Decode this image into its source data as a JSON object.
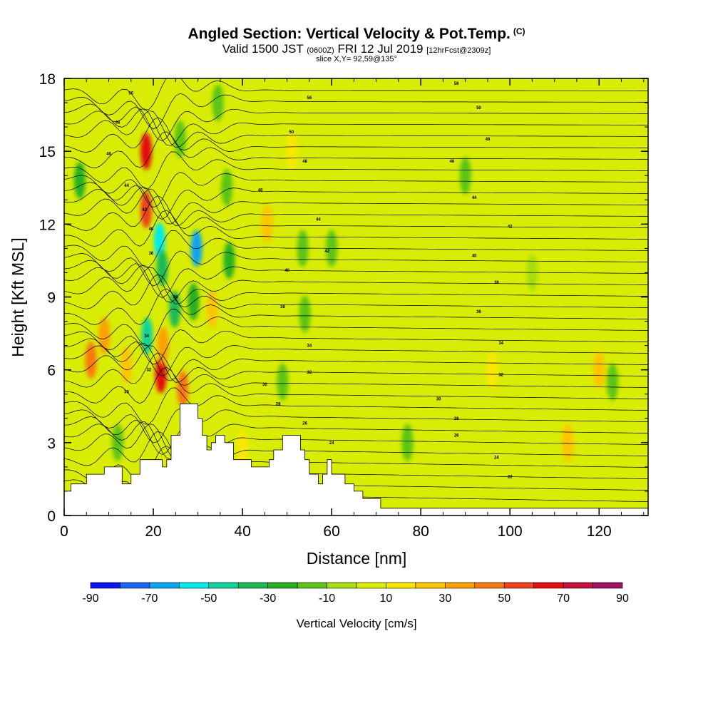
{
  "header": {
    "title": "Angled Section: Vertical Velocity & Pot.Temp.",
    "title_unit": "(C)",
    "subtitle_main": "Valid 1500 JST",
    "subtitle_utc": "(0600Z)",
    "subtitle_date": "FRI 12 Jul 2019",
    "subtitle_fcst": "[12hrFcst@2309z]",
    "slice": "slice X,Y= 92,59@135°"
  },
  "chart_data": {
    "type": "heatmap",
    "title": "Angled Section: Vertical Velocity & Pot.Temp.",
    "xlabel": "Distance [nm]",
    "ylabel": "Height [Kft MSL]",
    "xlim": [
      0,
      131
    ],
    "ylim": [
      0,
      18
    ],
    "x_ticks": [
      "0",
      "20",
      "40",
      "60",
      "80",
      "100",
      "120"
    ],
    "y_ticks": [
      "0",
      "3",
      "6",
      "9",
      "12",
      "15",
      "18"
    ],
    "colorbar": {
      "title": "Vertical Velocity [cm/s]",
      "tick_labels": [
        "-90",
        "-70",
        "-50",
        "-30",
        "-10",
        "10",
        "30",
        "50",
        "70",
        "90"
      ],
      "bounds": [
        -90,
        -80,
        -70,
        -60,
        -50,
        -40,
        -30,
        -20,
        -10,
        0,
        10,
        20,
        30,
        40,
        50,
        60,
        70,
        80,
        90
      ],
      "colors": [
        "#0a14f0",
        "#1a64f2",
        "#0aa6f2",
        "#00ecec",
        "#10d49c",
        "#1cba54",
        "#28b020",
        "#5cc414",
        "#a6de10",
        "#d8ec04",
        "#fae700",
        "#fec400",
        "#fca000",
        "#f87810",
        "#f0401c",
        "#e41010",
        "#c8103c",
        "#a01064"
      ]
    },
    "velocity_cells": [
      {
        "x": 6,
        "y": 6.4,
        "v": 45
      },
      {
        "x": 9,
        "y": 7.4,
        "v": 30
      },
      {
        "x": 14,
        "y": 6.2,
        "v": 22
      },
      {
        "x": 18.4,
        "y": 15.0,
        "v": 65
      },
      {
        "x": 18.4,
        "y": 12.6,
        "v": 55
      },
      {
        "x": 21.4,
        "y": 11.3,
        "v": -55
      },
      {
        "x": 22.0,
        "y": 10.2,
        "v": -35
      },
      {
        "x": 18.6,
        "y": 7.4,
        "v": -45
      },
      {
        "x": 21.7,
        "y": 5.8,
        "v": 62
      },
      {
        "x": 22.2,
        "y": 7.0,
        "v": 35
      },
      {
        "x": 24.8,
        "y": 8.5,
        "v": -35
      },
      {
        "x": 29.7,
        "y": 11.0,
        "v": -62
      },
      {
        "x": 29.0,
        "y": 8.8,
        "v": -28
      },
      {
        "x": 26.6,
        "y": 5.2,
        "v": 40
      },
      {
        "x": 33.2,
        "y": 8.5,
        "v": 25
      },
      {
        "x": 37.0,
        "y": 10.5,
        "v": -22
      },
      {
        "x": 36.5,
        "y": 13.5,
        "v": -20
      },
      {
        "x": 3.5,
        "y": 13.8,
        "v": -22
      },
      {
        "x": 26.0,
        "y": 15.5,
        "v": -18
      },
      {
        "x": 34.5,
        "y": 17.0,
        "v": -15
      },
      {
        "x": 45.5,
        "y": 12.0,
        "v": 22
      },
      {
        "x": 51.0,
        "y": 15.0,
        "v": 18
      },
      {
        "x": 53.5,
        "y": 11.0,
        "v": -20
      },
      {
        "x": 54.0,
        "y": 8.3,
        "v": -18
      },
      {
        "x": 49.0,
        "y": 5.5,
        "v": -15
      },
      {
        "x": 60.0,
        "y": 11.0,
        "v": -12
      },
      {
        "x": 113.0,
        "y": 3.0,
        "v": 28
      },
      {
        "x": 120.0,
        "y": 6.0,
        "v": 22
      },
      {
        "x": 123.0,
        "y": 5.5,
        "v": -15
      },
      {
        "x": 90.0,
        "y": 14.0,
        "v": -12
      },
      {
        "x": 105.0,
        "y": 10.0,
        "v": -10
      },
      {
        "x": 96.0,
        "y": 6.0,
        "v": 12
      },
      {
        "x": 77.0,
        "y": 3.0,
        "v": -14
      },
      {
        "x": 40.0,
        "y": 2.8,
        "v": 18
      },
      {
        "x": 12.0,
        "y": 3.0,
        "v": -18
      }
    ],
    "terrain_profile": [
      [
        0,
        1.0
      ],
      [
        1.5,
        1.0
      ],
      [
        1.5,
        1.3
      ],
      [
        5,
        1.3
      ],
      [
        5,
        1.7
      ],
      [
        9,
        1.7
      ],
      [
        9,
        2.0
      ],
      [
        13,
        2.0
      ],
      [
        13,
        1.3
      ],
      [
        15,
        1.3
      ],
      [
        15,
        1.7
      ],
      [
        17,
        1.7
      ],
      [
        17,
        2.3
      ],
      [
        22,
        2.3
      ],
      [
        22,
        2.0
      ],
      [
        23,
        2.0
      ],
      [
        23,
        2.3
      ],
      [
        24,
        2.3
      ],
      [
        24,
        3.3
      ],
      [
        26,
        3.3
      ],
      [
        26,
        4.6
      ],
      [
        30,
        4.6
      ],
      [
        30,
        4.0
      ],
      [
        31,
        4.0
      ],
      [
        31,
        3.3
      ],
      [
        32,
        3.3
      ],
      [
        32,
        2.7
      ],
      [
        33,
        2.7
      ],
      [
        33,
        3.0
      ],
      [
        34,
        3.0
      ],
      [
        34,
        3.3
      ],
      [
        36,
        3.3
      ],
      [
        36,
        3.0
      ],
      [
        38,
        3.0
      ],
      [
        38,
        2.3
      ],
      [
        42,
        2.3
      ],
      [
        42,
        2.0
      ],
      [
        46,
        2.0
      ],
      [
        46,
        2.3
      ],
      [
        47,
        2.3
      ],
      [
        47,
        2.7
      ],
      [
        49,
        2.7
      ],
      [
        49,
        3.3
      ],
      [
        53,
        3.3
      ],
      [
        53,
        2.7
      ],
      [
        54,
        2.7
      ],
      [
        54,
        2.3
      ],
      [
        55,
        2.3
      ],
      [
        55,
        1.7
      ],
      [
        57,
        1.7
      ],
      [
        57,
        1.3
      ],
      [
        58,
        1.3
      ],
      [
        58,
        1.7
      ],
      [
        59,
        1.7
      ],
      [
        59,
        2.3
      ],
      [
        60,
        2.3
      ],
      [
        60,
        1.7
      ],
      [
        63,
        1.7
      ],
      [
        63,
        1.3
      ],
      [
        65,
        1.3
      ],
      [
        65,
        1.0
      ],
      [
        67,
        1.0
      ],
      [
        67,
        0.7
      ],
      [
        71,
        0.7
      ],
      [
        71,
        0.3
      ],
      [
        131,
        0.3
      ]
    ],
    "isotherm_labels": [
      {
        "x": 15,
        "y": 17.4,
        "text": "50"
      },
      {
        "x": 12,
        "y": 16.2,
        "text": "48"
      },
      {
        "x": 10,
        "y": 14.9,
        "text": "46"
      },
      {
        "x": 14,
        "y": 13.6,
        "text": "44"
      },
      {
        "x": 18,
        "y": 12.6,
        "text": "42"
      },
      {
        "x": 19.5,
        "y": 11.8,
        "text": "40"
      },
      {
        "x": 19.5,
        "y": 10.8,
        "text": "38"
      },
      {
        "x": 25,
        "y": 9.0,
        "text": "36"
      },
      {
        "x": 18.5,
        "y": 7.4,
        "text": "34"
      },
      {
        "x": 19,
        "y": 6.0,
        "text": "32"
      },
      {
        "x": 14,
        "y": 5.1,
        "text": "30"
      },
      {
        "x": 55,
        "y": 17.2,
        "text": "56"
      },
      {
        "x": 51,
        "y": 15.8,
        "text": "50"
      },
      {
        "x": 54,
        "y": 14.6,
        "text": "48"
      },
      {
        "x": 44,
        "y": 13.4,
        "text": "46"
      },
      {
        "x": 57,
        "y": 12.2,
        "text": "44"
      },
      {
        "x": 59,
        "y": 10.9,
        "text": "42"
      },
      {
        "x": 50,
        "y": 10.1,
        "text": "40"
      },
      {
        "x": 49,
        "y": 8.6,
        "text": "38"
      },
      {
        "x": 55,
        "y": 7.0,
        "text": "34"
      },
      {
        "x": 55,
        "y": 5.9,
        "text": "32"
      },
      {
        "x": 45,
        "y": 5.4,
        "text": "30"
      },
      {
        "x": 48,
        "y": 4.6,
        "text": "28"
      },
      {
        "x": 54,
        "y": 3.8,
        "text": "26"
      },
      {
        "x": 60,
        "y": 3.0,
        "text": "24"
      },
      {
        "x": 88,
        "y": 17.8,
        "text": "56"
      },
      {
        "x": 93,
        "y": 16.8,
        "text": "50"
      },
      {
        "x": 95,
        "y": 15.5,
        "text": "48"
      },
      {
        "x": 87,
        "y": 14.6,
        "text": "46"
      },
      {
        "x": 92,
        "y": 13.1,
        "text": "44"
      },
      {
        "x": 100,
        "y": 11.9,
        "text": "42"
      },
      {
        "x": 92,
        "y": 10.7,
        "text": "40"
      },
      {
        "x": 97,
        "y": 9.6,
        "text": "38"
      },
      {
        "x": 93,
        "y": 8.4,
        "text": "36"
      },
      {
        "x": 98,
        "y": 7.1,
        "text": "34"
      },
      {
        "x": 98,
        "y": 5.8,
        "text": "32"
      },
      {
        "x": 84,
        "y": 4.8,
        "text": "30"
      },
      {
        "x": 88,
        "y": 4.0,
        "text": "28"
      },
      {
        "x": 88,
        "y": 3.3,
        "text": "26"
      },
      {
        "x": 97,
        "y": 2.4,
        "text": "24"
      },
      {
        "x": 100,
        "y": 1.6,
        "text": "22"
      }
    ]
  }
}
